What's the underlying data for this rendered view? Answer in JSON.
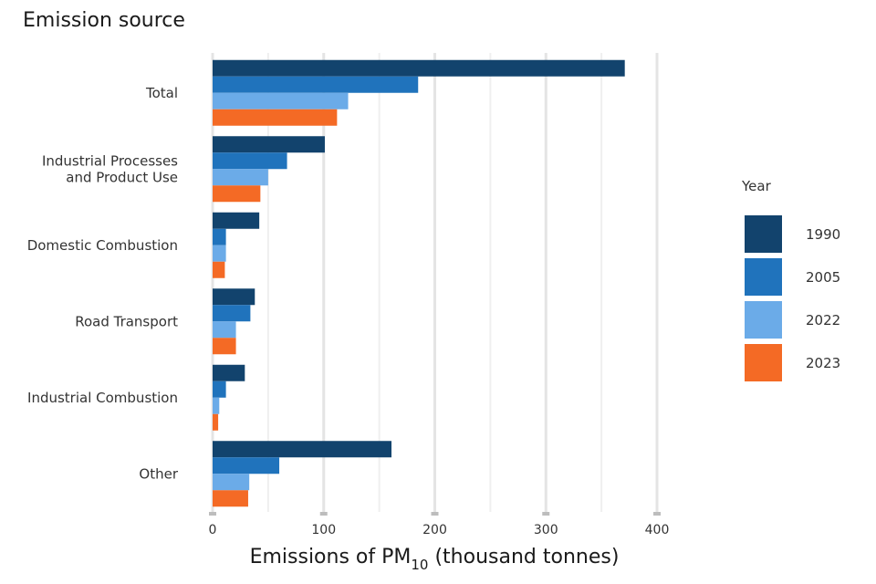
{
  "chart_data": {
    "type": "bar",
    "orientation": "horizontal",
    "title": "",
    "ylabel": "Emission source",
    "xlabel_parts": {
      "prefix": "Emissions of PM",
      "subscript": "10",
      "suffix": " (thousand tonnes)"
    },
    "categories": [
      [
        "Total"
      ],
      [
        "Industrial Processes",
        "and Product Use"
      ],
      [
        "Domestic Combustion"
      ],
      [
        "Road Transport"
      ],
      [
        "Industrial Combustion"
      ],
      [
        "Other"
      ]
    ],
    "series": [
      {
        "name": "1990",
        "color": "#12436d",
        "values": [
          371,
          101,
          42,
          38,
          29,
          161
        ]
      },
      {
        "name": "2005",
        "color": "#2073bc",
        "values": [
          185,
          67,
          12,
          34,
          12,
          60
        ]
      },
      {
        "name": "2022",
        "color": "#6babe8",
        "values": [
          122,
          50,
          12,
          21,
          6,
          33
        ]
      },
      {
        "name": "2023",
        "color": "#f46a25",
        "values": [
          112,
          43,
          11,
          21,
          5,
          32
        ]
      }
    ],
    "xlim": [
      0,
      400
    ],
    "xticks": [
      0,
      100,
      200,
      300,
      400
    ],
    "grid": true,
    "legend_title": "Year",
    "legend_position": "right"
  }
}
